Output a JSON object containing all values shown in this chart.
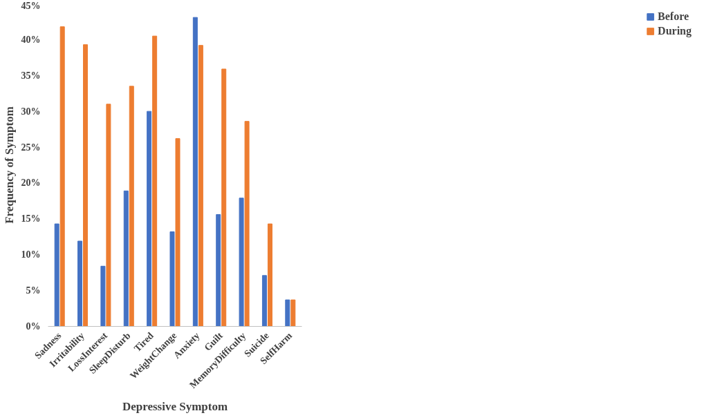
{
  "chart_data": {
    "type": "bar",
    "xlabel": "Depressive Symptom",
    "ylabel": "Frequency of Symptom",
    "categories": [
      "Sadness",
      "Irritability",
      "LossInterest",
      "SleepDisturb",
      "Tired",
      "WeightChange",
      "Anxiety",
      "Guilt",
      "MemoryDifficulty",
      "Suicide",
      "SelfHarm"
    ],
    "series": [
      {
        "name": "Before",
        "color": "#4472c4",
        "values": [
          14.3,
          11.9,
          8.4,
          18.9,
          30.0,
          13.2,
          43.1,
          15.6,
          17.9,
          7.1,
          3.7
        ]
      },
      {
        "name": "During",
        "color": "#ed7d31",
        "values": [
          41.8,
          39.3,
          31.0,
          33.5,
          40.5,
          26.2,
          39.2,
          35.9,
          28.6,
          14.3,
          3.7
        ]
      }
    ],
    "ylim": [
      0,
      45
    ],
    "yticks": [
      {
        "value": 0,
        "label": "0%"
      },
      {
        "value": 5,
        "label": "5%"
      },
      {
        "value": 10,
        "label": "10%"
      },
      {
        "value": 15,
        "label": "15%"
      },
      {
        "value": 20,
        "label": "20%"
      },
      {
        "value": 25,
        "label": "25%"
      },
      {
        "value": 30,
        "label": "30%"
      },
      {
        "value": 35,
        "label": "35%"
      },
      {
        "value": 40,
        "label": "40%"
      },
      {
        "value": 45,
        "label": "45%"
      }
    ],
    "grid": false,
    "legend": "right"
  }
}
